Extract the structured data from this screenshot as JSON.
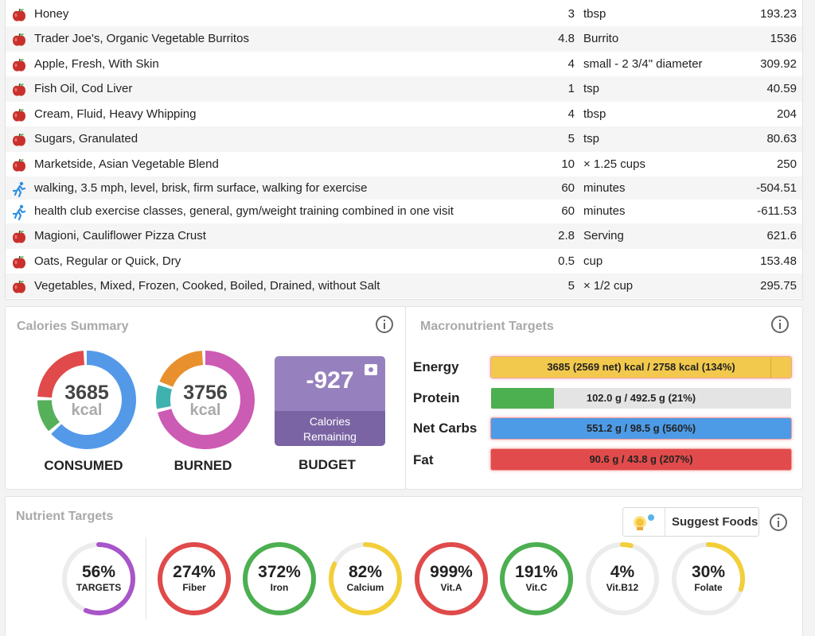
{
  "diary": [
    {
      "type": "food",
      "name": "Honey",
      "amount": "3",
      "unit": "tbsp",
      "calories": "193.23"
    },
    {
      "type": "food",
      "name": "Trader Joe's, Organic Vegetable Burritos",
      "amount": "4.8",
      "unit": "Burrito",
      "calories": "1536"
    },
    {
      "type": "food",
      "name": "Apple, Fresh, With Skin",
      "amount": "4",
      "unit": "small - 2 3/4\" diameter",
      "calories": "309.92"
    },
    {
      "type": "food",
      "name": "Fish Oil, Cod Liver",
      "amount": "1",
      "unit": "tsp",
      "calories": "40.59"
    },
    {
      "type": "food",
      "name": "Cream, Fluid, Heavy Whipping",
      "amount": "4",
      "unit": "tbsp",
      "calories": "204"
    },
    {
      "type": "food",
      "name": "Sugars, Granulated",
      "amount": "5",
      "unit": "tsp",
      "calories": "80.63"
    },
    {
      "type": "food",
      "name": "Marketside, Asian Vegetable Blend",
      "amount": "10",
      "unit": "× 1.25 cups",
      "calories": "250"
    },
    {
      "type": "exercise",
      "name": "walking, 3.5 mph, level, brisk, firm surface, walking for exercise",
      "amount": "60",
      "unit": "minutes",
      "calories": "-504.51"
    },
    {
      "type": "exercise",
      "name": "health club exercise classes, general, gym/weight training combined in one visit",
      "amount": "60",
      "unit": "minutes",
      "calories": "-611.53"
    },
    {
      "type": "food",
      "name": "Magioni, Cauliflower Pizza Crust",
      "amount": "2.8",
      "unit": "Serving",
      "calories": "621.6"
    },
    {
      "type": "food",
      "name": "Oats, Regular or Quick, Dry",
      "amount": "0.5",
      "unit": "cup",
      "calories": "153.48"
    },
    {
      "type": "food",
      "name": "Vegetables, Mixed, Frozen, Cooked, Boiled, Drained, without Salt",
      "amount": "5",
      "unit": "× 1/2 cup",
      "calories": "295.75"
    }
  ],
  "icons": {
    "food": "apple-icon",
    "exercise": "running-person-icon",
    "info": "info-icon",
    "suggest": "lightbulb-icon",
    "budget_edit": "camera-icon"
  },
  "calories_summary": {
    "title": "Calories Summary",
    "consumed": {
      "value": "3685",
      "unit": "kcal",
      "label": "CONSUMED",
      "segments": [
        {
          "color": "#5499e8",
          "fraction": 0.64
        },
        {
          "color": "#56b05a",
          "fraction": 0.12
        },
        {
          "color": "#e04a4a",
          "fraction": 0.24
        }
      ]
    },
    "burned": {
      "value": "3756",
      "unit": "kcal",
      "label": "BURNED",
      "segments": [
        {
          "color": "#cc5bb4",
          "fraction": 0.72
        },
        {
          "color": "#3fb2b0",
          "fraction": 0.09
        },
        {
          "color": "#e8902e",
          "fraction": 0.19
        }
      ]
    },
    "budget": {
      "value": "-927",
      "line1": "Calories",
      "line2": "Remaining",
      "label": "BUDGET"
    }
  },
  "macros": {
    "title": "Macronutrient Targets",
    "items": [
      {
        "name": "Energy",
        "text": "3685 (2569 net) kcal / 2758 kcal (134%)",
        "fill": 1.0,
        "color": "#f2c94c",
        "over": true
      },
      {
        "name": "Protein",
        "text": "102.0 g / 492.5 g (21%)",
        "fill": 0.21,
        "color": "#4caf50",
        "over": false
      },
      {
        "name": "Net Carbs",
        "text": "551.2 g / 98.5 g (560%)",
        "fill": 1.0,
        "color": "#4d9be6",
        "over": true
      },
      {
        "name": "Fat",
        "text": "90.6 g / 43.8 g (207%)",
        "fill": 1.0,
        "color": "#e24b4b",
        "over": true
      }
    ]
  },
  "nutrients": {
    "title": "Nutrient Targets",
    "suggest_label": "Suggest Foods",
    "items": [
      {
        "value": "56%",
        "label": "TARGETS",
        "fraction": 0.56,
        "color": "#a855c9"
      },
      {
        "value": "274%",
        "label": "Fiber",
        "fraction": 1.0,
        "color": "#e04a4a"
      },
      {
        "value": "372%",
        "label": "Iron",
        "fraction": 1.0,
        "color": "#4caf50"
      },
      {
        "value": "82%",
        "label": "Calcium",
        "fraction": 0.82,
        "color": "#f2cf3a"
      },
      {
        "value": "999%",
        "label": "Vit.A",
        "fraction": 1.0,
        "color": "#e04a4a"
      },
      {
        "value": "191%",
        "label": "Vit.C",
        "fraction": 1.0,
        "color": "#4caf50"
      },
      {
        "value": "4%",
        "label": "Vit.B12",
        "fraction": 0.04,
        "color": "#f2cf3a"
      },
      {
        "value": "30%",
        "label": "Folate",
        "fraction": 0.3,
        "color": "#f2cf3a"
      }
    ]
  }
}
